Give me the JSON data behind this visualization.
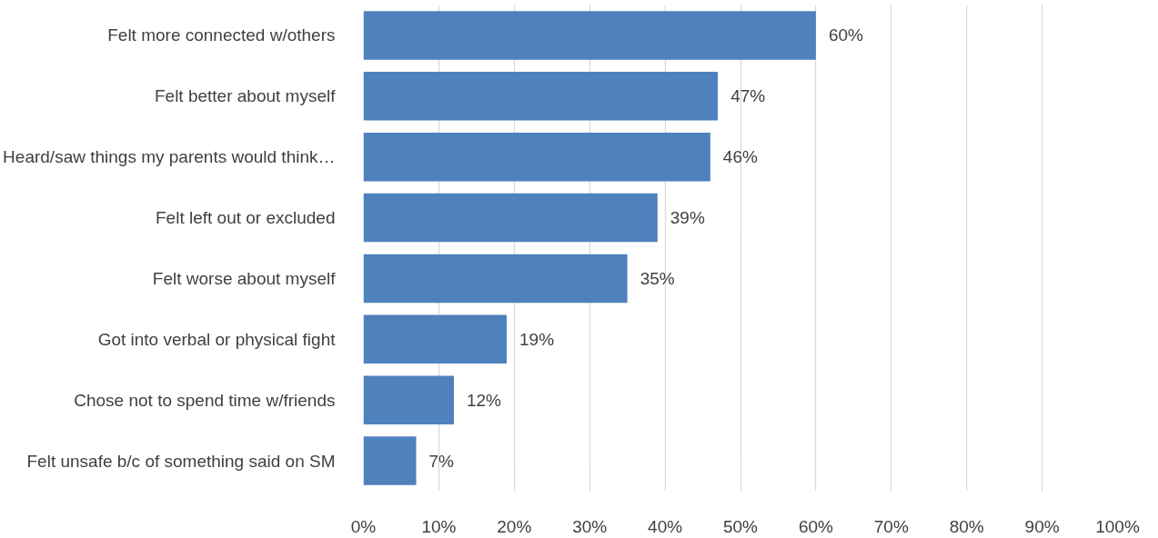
{
  "chart_data": {
    "type": "bar",
    "orientation": "horizontal",
    "categories": [
      "Felt more connected w/others",
      "Felt better about myself",
      "Heard/saw things my parents would think…",
      "Felt left out or excluded",
      "Felt worse about myself",
      "Got into verbal or physical fight",
      "Chose not to spend time w/friends",
      "Felt unsafe b/c of something said on SM"
    ],
    "values": [
      60,
      47,
      46,
      39,
      35,
      19,
      12,
      7
    ],
    "value_labels": [
      "60%",
      "47%",
      "46%",
      "39%",
      "35%",
      "19%",
      "12%",
      "7%"
    ],
    "color": "#4f81bd",
    "xlim": [
      0,
      100
    ],
    "xticks": [
      {
        "value": 0,
        "label": "0%"
      },
      {
        "value": 10,
        "label": "10%"
      },
      {
        "value": 20,
        "label": "20%"
      },
      {
        "value": 30,
        "label": "30%"
      },
      {
        "value": 40,
        "label": "40%"
      },
      {
        "value": 50,
        "label": "50%"
      },
      {
        "value": 60,
        "label": "60%"
      },
      {
        "value": 70,
        "label": "70%"
      },
      {
        "value": 80,
        "label": "80%"
      },
      {
        "value": 90,
        "label": "90%"
      },
      {
        "value": 100,
        "label": "100%"
      }
    ],
    "grid": "x"
  }
}
